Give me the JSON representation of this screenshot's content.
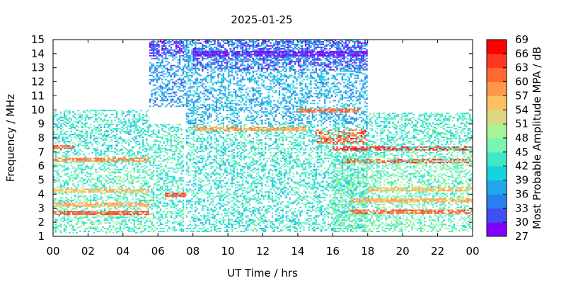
{
  "chart_data": {
    "type": "heatmap",
    "title": "2025-01-25",
    "xlabel": "UT Time / hrs",
    "ylabel": "Frequency / MHz",
    "xlim": [
      0,
      24
    ],
    "ylim": [
      1,
      15
    ],
    "x_ticks": [
      "00",
      "02",
      "04",
      "06",
      "08",
      "10",
      "12",
      "14",
      "16",
      "18",
      "20",
      "22",
      "00"
    ],
    "y_ticks": [
      "1",
      "2",
      "3",
      "4",
      "5",
      "6",
      "7",
      "8",
      "9",
      "10",
      "11",
      "12",
      "13",
      "14",
      "15"
    ],
    "colorbar": {
      "label": "Most Probable Amplitude MPA / dB",
      "ticks": [
        "27",
        "30",
        "33",
        "36",
        "39",
        "42",
        "45",
        "48",
        "51",
        "54",
        "57",
        "60",
        "63",
        "66",
        "69"
      ],
      "range": [
        27,
        69
      ],
      "colors": [
        "#8000ff",
        "#4050f0",
        "#2a7ff0",
        "#20a8e8",
        "#18d2e0",
        "#40e8c8",
        "#78f5b0",
        "#a8f598",
        "#d8d880",
        "#ffc060",
        "#ff9848",
        "#ff6830",
        "#ff3820",
        "#ff0000"
      ]
    },
    "bands": [
      {
        "t": [
          0.0,
          5.5
        ],
        "f": [
          1.2,
          6.8
        ],
        "mpa": 45
      },
      {
        "t": [
          0.0,
          5.5
        ],
        "f": [
          6.8,
          10.0
        ],
        "mpa": 43
      },
      {
        "t": [
          0.0,
          5.5
        ],
        "f": [
          2.5,
          2.8
        ],
        "mpa": 63
      },
      {
        "t": [
          0.0,
          5.5
        ],
        "f": [
          3.1,
          3.4
        ],
        "mpa": 57
      },
      {
        "t": [
          0.0,
          5.5
        ],
        "f": [
          4.1,
          4.4
        ],
        "mpa": 56
      },
      {
        "t": [
          0.0,
          5.5
        ],
        "f": [
          6.3,
          6.6
        ],
        "mpa": 60
      },
      {
        "t": [
          0.0,
          1.2
        ],
        "f": [
          7.2,
          7.5
        ],
        "mpa": 62
      },
      {
        "t": [
          5.5,
          7.5
        ],
        "f": [
          1.3,
          9.0
        ],
        "mpa": 44
      },
      {
        "t": [
          5.5,
          7.8
        ],
        "f": [
          10.2,
          15.0
        ],
        "mpa": 36
      },
      {
        "t": [
          5.5,
          7.5
        ],
        "f": [
          13.8,
          15.0
        ],
        "mpa": 29
      },
      {
        "t": [
          6.4,
          7.6
        ],
        "f": [
          3.8,
          4.1
        ],
        "mpa": 63
      },
      {
        "t": [
          7.6,
          18.0
        ],
        "f": [
          1.3,
          9.0
        ],
        "mpa": 43
      },
      {
        "t": [
          7.6,
          18.0
        ],
        "f": [
          9.0,
          15.0
        ],
        "mpa": 38
      },
      {
        "t": [
          8.0,
          18.0
        ],
        "f": [
          12.8,
          15.0
        ],
        "mpa": 32
      },
      {
        "t": [
          8.0,
          18.0
        ],
        "f": [
          13.8,
          14.2
        ],
        "mpa": 29
      },
      {
        "t": [
          8.0,
          14.5
        ],
        "f": [
          8.5,
          8.8
        ],
        "mpa": 58
      },
      {
        "t": [
          14.0,
          17.5
        ],
        "f": [
          9.8,
          10.1
        ],
        "mpa": 61
      },
      {
        "t": [
          15.0,
          18.0
        ],
        "f": [
          7.6,
          8.6
        ],
        "mpa": 62
      },
      {
        "t": [
          16.0,
          24.0
        ],
        "f": [
          7.1,
          7.4
        ],
        "mpa": 66
      },
      {
        "t": [
          16.5,
          24.0
        ],
        "f": [
          6.2,
          6.5
        ],
        "mpa": 64
      },
      {
        "t": [
          16.0,
          24.0
        ],
        "f": [
          1.3,
          6.8
        ],
        "mpa": 46
      },
      {
        "t": [
          18.0,
          24.0
        ],
        "f": [
          6.8,
          9.8
        ],
        "mpa": 44
      },
      {
        "t": [
          17.0,
          24.0
        ],
        "f": [
          2.6,
          2.9
        ],
        "mpa": 62
      },
      {
        "t": [
          17.0,
          24.0
        ],
        "f": [
          3.4,
          3.7
        ],
        "mpa": 57
      },
      {
        "t": [
          18.0,
          24.0
        ],
        "f": [
          4.2,
          4.5
        ],
        "mpa": 56
      }
    ]
  }
}
